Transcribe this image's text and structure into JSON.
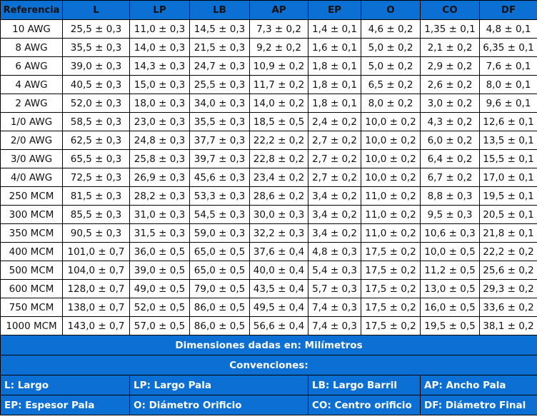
{
  "table": {
    "headers": [
      "Referencia",
      "L",
      "LP",
      "LB",
      "AP",
      "EP",
      "O",
      "CO",
      "DF"
    ],
    "rows": [
      [
        "10 AWG",
        "25,5 ± 0,3",
        "11,0 ± 0,3",
        "14,5 ± 0,3",
        "7,3 ± 0,2",
        "1,4 ± 0,1",
        "4,6 ± 0,2",
        "1,35 ± 0,1",
        "4,8 ± 0,1"
      ],
      [
        "8 AWG",
        "35,5 ± 0,3",
        "14,0 ± 0,3",
        "21,5 ± 0,3",
        "9,2 ± 0,2",
        "1,6 ± 0,1",
        "5,0 ± 0,2",
        "2,1 ± 0,2",
        "6,35 ± 0,1"
      ],
      [
        "6 AWG",
        "39,0 ± 0,3",
        "14,3 ± 0,3",
        "24,7 ± 0,3",
        "10,9 ± 0,2",
        "1,8 ± 0,1",
        "5,0 ± 0,2",
        "2,9 ± 0,2",
        "7,6 ± 0,1"
      ],
      [
        "4 AWG",
        "40,5 ± 0,3",
        "15,0 ± 0,3",
        "25,5 ± 0,3",
        "11,7 ± 0,2",
        "1,8 ± 0,1",
        "6,5 ± 0,2",
        "2,6 ± 0,2",
        "8,0 ± 0,1"
      ],
      [
        "2 AWG",
        "52,0 ± 0,3",
        "18,0 ± 0,3",
        "34,0 ± 0,3",
        "14,0 ± 0,2",
        "1,8 ± 0,1",
        "8,0 ± 0,2",
        "3,0 ± 0,2",
        "9,6 ± 0,1"
      ],
      [
        "1/0 AWG",
        "58,5 ± 0,3",
        "23,0 ± 0,3",
        "35,5 ± 0,3",
        "18,5 ± 0,5",
        "2,4 ± 0,2",
        "10,0 ± 0,2",
        "4,3 ± 0,2",
        "12,6 ± 0,1"
      ],
      [
        "2/0 AWG",
        "62,5 ± 0,3",
        "24,8 ± 0,3",
        "37,7 ± 0,3",
        "22,2 ± 0,2",
        "2,7 ± 0,2",
        "10,0 ± 0,2",
        "6,0 ± 0,2",
        "13,5 ± 0,1"
      ],
      [
        "3/0 AWG",
        "65,5 ± 0,3",
        "25,8 ± 0,3",
        "39,7 ± 0,3",
        "22,8 ± 0,2",
        "2,7 ± 0,2",
        "10,0 ± 0,2",
        "6,4 ± 0,2",
        "15,5 ± 0,1"
      ],
      [
        "4/0 AWG",
        "72,5 ± 0,3",
        "26,9 ± 0,3",
        "45,6 ± 0,3",
        "23,4 ± 0,2",
        "2,7 ± 0,2",
        "10,0 ± 0,2",
        "6,7 ± 0,2",
        "17,0 ± 0,1"
      ],
      [
        "250 MCM",
        "81,5 ± 0,3",
        "28,2 ± 0,3",
        "53,3 ± 0,3",
        "28,6 ± 0,2",
        "3,4 ± 0,2",
        "11,0 ± 0,2",
        "8,8 ± 0,3",
        "19,5 ± 0,1"
      ],
      [
        "300 MCM",
        "85,5 ± 0,3",
        "31,0 ± 0,3",
        "54,5 ± 0,3",
        "30,0 ± 0,3",
        "3,4 ± 0,2",
        "11,0 ± 0,2",
        "9,5 ± 0,3",
        "20,5 ± 0,1"
      ],
      [
        "350 MCM",
        "90,5 ± 0,3",
        "31,5 ± 0,3",
        "59,0 ± 0,3",
        "32,2 ± 0,3",
        "3,4 ± 0,2",
        "11,0 ± 0,2",
        "10,6 ± 0,3",
        "21,8 ± 0,1"
      ],
      [
        "400 MCM",
        "101,0 ± 0,7",
        "36,0 ± 0,5",
        "65,0 ± 0,5",
        "37,6 ± 0,4",
        "4,8 ± 0,3",
        "17,5 ± 0,2",
        "10,0 ± 0,5",
        "22,2 ± 0,2"
      ],
      [
        "500 MCM",
        "104,0 ± 0,7",
        "39,0 ± 0,5",
        "65,0 ± 0,5",
        "40,0 ± 0,4",
        "5,4 ± 0,3",
        "17,5 ± 0,2",
        "11,2 ± 0,5",
        "25,6 ± 0,2"
      ],
      [
        "600 MCM",
        "128,0 ± 0,7",
        "49,0 ± 0,5",
        "79,0 ± 0,5",
        "43,5 ± 0,4",
        "5,7 ± 0,3",
        "17,5 ± 0,2",
        "13,0 ± 0,5",
        "29,3 ± 0,2"
      ],
      [
        "750 MCM",
        "138,0 ± 0,7",
        "52,0 ± 0,5",
        "86,0 ± 0,5",
        "49,5 ± 0,4",
        "7,4 ± 0,3",
        "17,5 ± 0,2",
        "16,0 ± 0,5",
        "33,6 ± 0,2"
      ],
      [
        "1000 MCM",
        "143,0 ± 0,7",
        "57,0 ± 0,5",
        "86,0 ± 0,5",
        "56,6 ± 0,4",
        "7,4 ± 0,3",
        "17,5 ± 0,2",
        "19,5 ± 0,5",
        "38,1 ± 0,2"
      ]
    ]
  },
  "footer": {
    "units": "Dimensiones dadas en:  Milímetros",
    "conventions_title": "Convenciones:",
    "conventions": [
      [
        "L: Largo",
        "LP: Largo Pala",
        "LB: Largo Barril",
        "AP: Ancho Pala"
      ],
      [
        "EP: Espesor Pala",
        "O: Diámetro Orificio",
        "CO: Centro orificio",
        "DF: Diámetro Final"
      ]
    ]
  },
  "colors": {
    "header_bg": "#0b6fd4",
    "header_text": "#ffffff",
    "border": "#000000"
  }
}
